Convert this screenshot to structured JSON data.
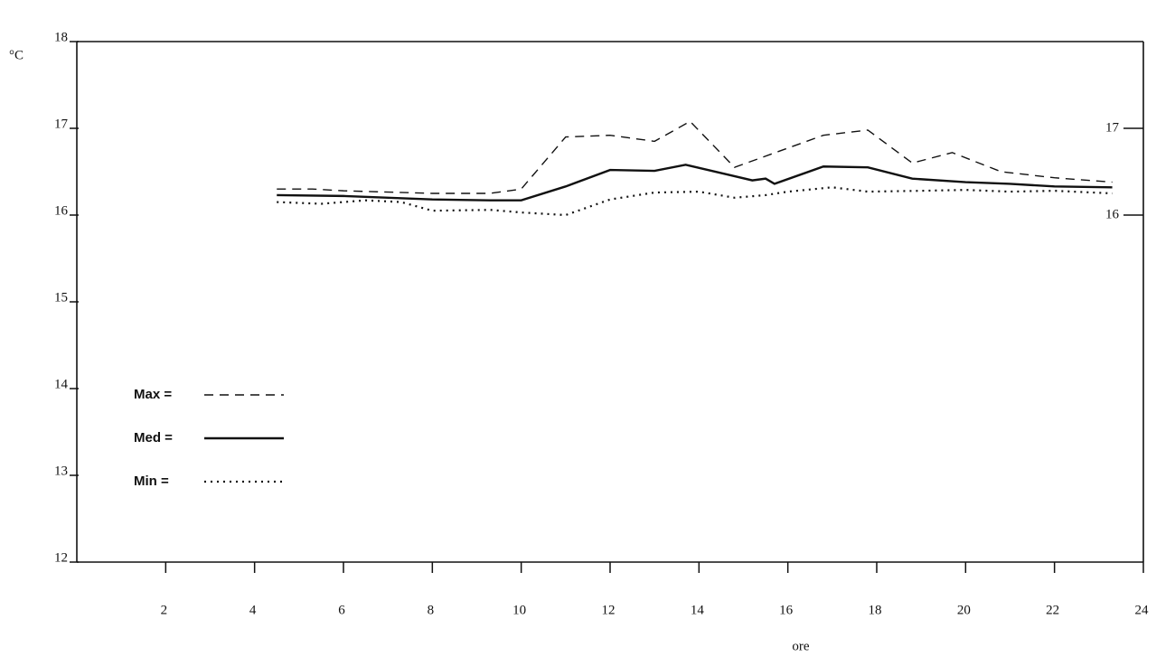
{
  "chart_data": {
    "type": "line",
    "y_label": "°C",
    "x_label": "ore",
    "xlim": [
      0,
      24
    ],
    "xticks": [
      2,
      4,
      6,
      8,
      10,
      12,
      14,
      16,
      18,
      20,
      22,
      24
    ],
    "ylim": [
      12,
      18
    ],
    "yticks": [
      12,
      13,
      14,
      15,
      16,
      17,
      18
    ],
    "y2lim": [
      12,
      18
    ],
    "y2ticks": [
      16,
      17
    ],
    "series": [
      {
        "name": "Max =",
        "color": "#111111",
        "dash": "10,7",
        "width": 1.4,
        "x": [
          4.5,
          5.3,
          6,
          8,
          9.3,
          10,
          11,
          12,
          13,
          13.8,
          14.8,
          16.8,
          17.8,
          18.8,
          19.7,
          20.8,
          22,
          23.3
        ],
        "values": [
          16.3,
          16.3,
          16.28,
          16.25,
          16.25,
          16.3,
          16.9,
          16.92,
          16.85,
          17.08,
          16.55,
          16.92,
          16.98,
          16.6,
          16.72,
          16.5,
          16.43,
          16.38
        ]
      },
      {
        "name": "Med =",
        "color": "#111111",
        "dash": "none",
        "width": 2.4,
        "x": [
          4.5,
          6,
          8,
          9.3,
          10,
          11,
          12,
          13,
          13.7,
          14.7,
          15.2,
          15.5,
          15.7,
          16.8,
          17.8,
          18.8,
          20,
          21,
          22,
          23.3
        ],
        "values": [
          16.23,
          16.22,
          16.18,
          16.17,
          16.17,
          16.33,
          16.52,
          16.51,
          16.58,
          16.46,
          16.4,
          16.42,
          16.36,
          16.56,
          16.55,
          16.42,
          16.38,
          16.36,
          16.33,
          16.32
        ]
      },
      {
        "name": "Min =",
        "color": "#111111",
        "dash": "2,5",
        "width": 2.2,
        "x": [
          4.5,
          5.5,
          6.5,
          7.3,
          8,
          9.3,
          10,
          11,
          12,
          13,
          14,
          14.8,
          15.5,
          16,
          17,
          17.8,
          19,
          20,
          21,
          22,
          23.3
        ],
        "values": [
          16.15,
          16.13,
          16.17,
          16.15,
          16.05,
          16.06,
          16.03,
          16.0,
          16.18,
          16.26,
          16.27,
          16.2,
          16.23,
          16.27,
          16.32,
          16.27,
          16.28,
          16.29,
          16.27,
          16.28,
          16.25
        ]
      }
    ]
  }
}
